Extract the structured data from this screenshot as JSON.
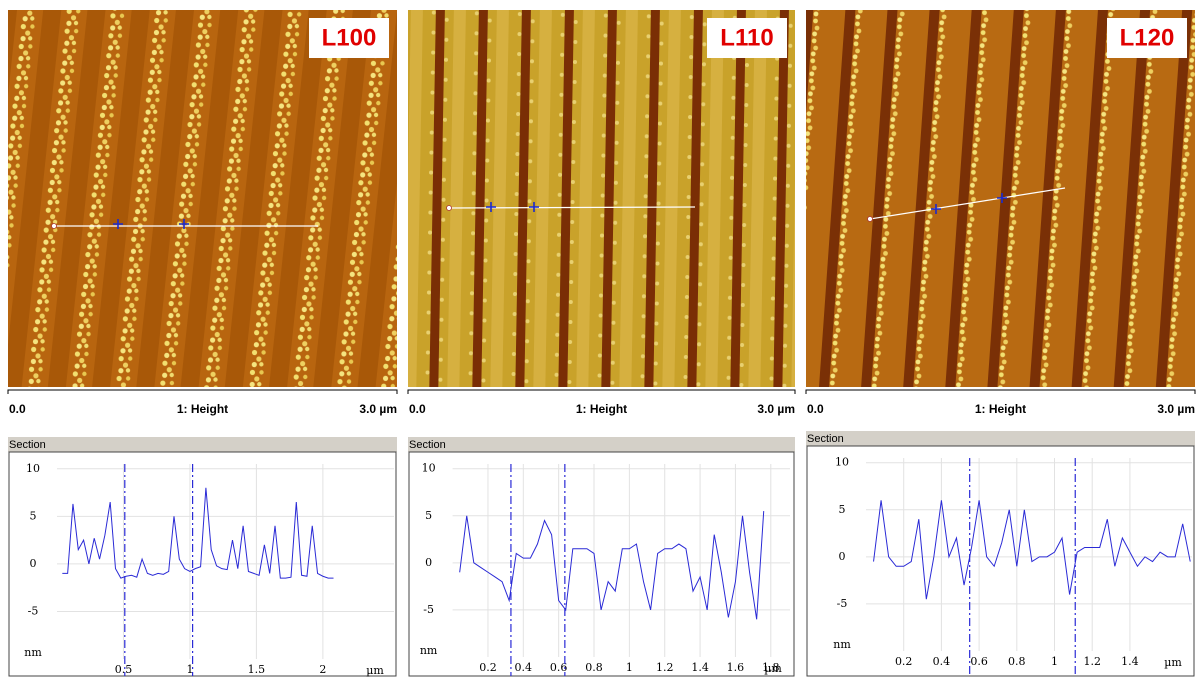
{
  "panels": [
    {
      "label": "L100",
      "scale_start": "0.0",
      "channel": "1: Height",
      "scale_end": "3.0 µm"
    },
    {
      "label": "L110",
      "scale_start": "0.0",
      "channel": "1: Height",
      "scale_end": "3.0 µm"
    },
    {
      "label": "L120",
      "scale_start": "0.0",
      "channel": "1: Height",
      "scale_end": "3.0 µm"
    }
  ],
  "chart_data": [
    {
      "type": "line",
      "title": "Section",
      "xlabel": "µm",
      "ylabel": "nm",
      "grid": true,
      "xlim": [
        0,
        2.55
      ],
      "ylim": [
        -10,
        10.5
      ],
      "xticks": [
        0.5,
        1,
        1.5,
        2
      ],
      "yticks": [
        -5,
        0,
        5,
        10
      ],
      "cursors": [
        0.51,
        1.02
      ],
      "color": "#2a2ad6",
      "x": [
        0.04,
        0.08,
        0.12,
        0.16,
        0.2,
        0.24,
        0.28,
        0.32,
        0.36,
        0.4,
        0.44,
        0.48,
        0.52,
        0.56,
        0.6,
        0.64,
        0.68,
        0.72,
        0.76,
        0.8,
        0.84,
        0.88,
        0.92,
        0.96,
        1,
        1.04,
        1.08,
        1.12,
        1.16,
        1.2,
        1.24,
        1.28,
        1.32,
        1.36,
        1.4,
        1.44,
        1.48,
        1.52,
        1.56,
        1.6,
        1.64,
        1.68,
        1.72,
        1.76,
        1.8,
        1.84,
        1.88,
        1.92,
        1.96,
        2,
        2.04,
        2.08
      ],
      "values": [
        -1,
        -1,
        6.3,
        1.5,
        2.5,
        0,
        2.7,
        0.5,
        3,
        6.5,
        -0.5,
        -1.5,
        -1.3,
        -1.2,
        -1.4,
        0.5,
        -1,
        -1.2,
        -1,
        -1.1,
        -0.8,
        5,
        0.5,
        -0.5,
        -0.8,
        -0.5,
        -0.3,
        8,
        1.5,
        -0.2,
        -0.5,
        -0.6,
        2.5,
        -0.5,
        4,
        -0.8,
        -1,
        -1.2,
        2,
        -1,
        4,
        -1.5,
        -1.5,
        -1.4,
        6.5,
        -1.2,
        -1.3,
        4,
        -1,
        -1.3,
        -1.5,
        -1.5
      ]
    },
    {
      "type": "line",
      "title": "Section",
      "xlabel": "µm",
      "ylabel": "nm",
      "grid": true,
      "xlim": [
        0,
        1.92
      ],
      "ylim": [
        -10,
        10.5
      ],
      "xticks": [
        0.2,
        0.4,
        0.6,
        0.8,
        1,
        1.2,
        1.4,
        1.6,
        1.8
      ],
      "yticks": [
        -5,
        0,
        5,
        10
      ],
      "cursors": [
        0.33,
        0.635
      ],
      "color": "#2a2ad6",
      "x": [
        0.04,
        0.08,
        0.12,
        0.16,
        0.2,
        0.24,
        0.28,
        0.32,
        0.36,
        0.4,
        0.44,
        0.48,
        0.52,
        0.56,
        0.6,
        0.64,
        0.68,
        0.72,
        0.76,
        0.8,
        0.84,
        0.88,
        0.92,
        0.96,
        1,
        1.04,
        1.08,
        1.12,
        1.16,
        1.2,
        1.24,
        1.28,
        1.32,
        1.36,
        1.4,
        1.44,
        1.48,
        1.52,
        1.56,
        1.6,
        1.64,
        1.68,
        1.72,
        1.76
      ],
      "values": [
        -1,
        5,
        0,
        -0.5,
        -1,
        -1.5,
        -2,
        -4,
        1,
        0.5,
        0.5,
        2,
        4.5,
        3,
        -4,
        -5,
        1.5,
        1.5,
        1.5,
        1,
        -5,
        -2,
        -3,
        1.5,
        1.5,
        2,
        -2,
        -5,
        1,
        1.5,
        1.5,
        2,
        1.5,
        -3,
        -1.5,
        -5,
        3,
        -1,
        -5.8,
        -2,
        5,
        -1,
        -6,
        5.5
      ]
    },
    {
      "type": "line",
      "title": "Section",
      "xlabel": "µm",
      "ylabel": "nm",
      "grid": true,
      "xlim": [
        0,
        1.74
      ],
      "ylim": [
        -10,
        10.5
      ],
      "xticks": [
        0.2,
        0.4,
        0.6,
        0.8,
        1,
        1.2,
        1.4
      ],
      "yticks": [
        -5,
        0,
        5,
        10
      ],
      "cursors": [
        0.55,
        1.11
      ],
      "color": "#2a2ad6",
      "x": [
        0.04,
        0.08,
        0.12,
        0.16,
        0.2,
        0.24,
        0.28,
        0.32,
        0.36,
        0.4,
        0.44,
        0.48,
        0.52,
        0.56,
        0.6,
        0.64,
        0.68,
        0.72,
        0.76,
        0.8,
        0.84,
        0.88,
        0.92,
        0.96,
        1,
        1.04,
        1.08,
        1.12,
        1.16,
        1.2,
        1.24,
        1.28,
        1.32,
        1.36,
        1.4,
        1.44,
        1.48,
        1.52,
        1.56,
        1.6,
        1.64,
        1.68,
        1.72
      ],
      "values": [
        -0.5,
        6,
        0,
        -1,
        -1,
        -0.5,
        4,
        -4.5,
        0,
        6,
        0,
        2,
        -3,
        1,
        6,
        0,
        -1,
        1.5,
        5,
        -1,
        5,
        -0.5,
        0,
        0,
        0.5,
        2,
        -4,
        0.5,
        1,
        1,
        1,
        4,
        -1,
        2,
        0.5,
        -1,
        0,
        -0.5,
        0.5,
        0,
        0,
        3.5,
        -0.5
      ]
    }
  ]
}
